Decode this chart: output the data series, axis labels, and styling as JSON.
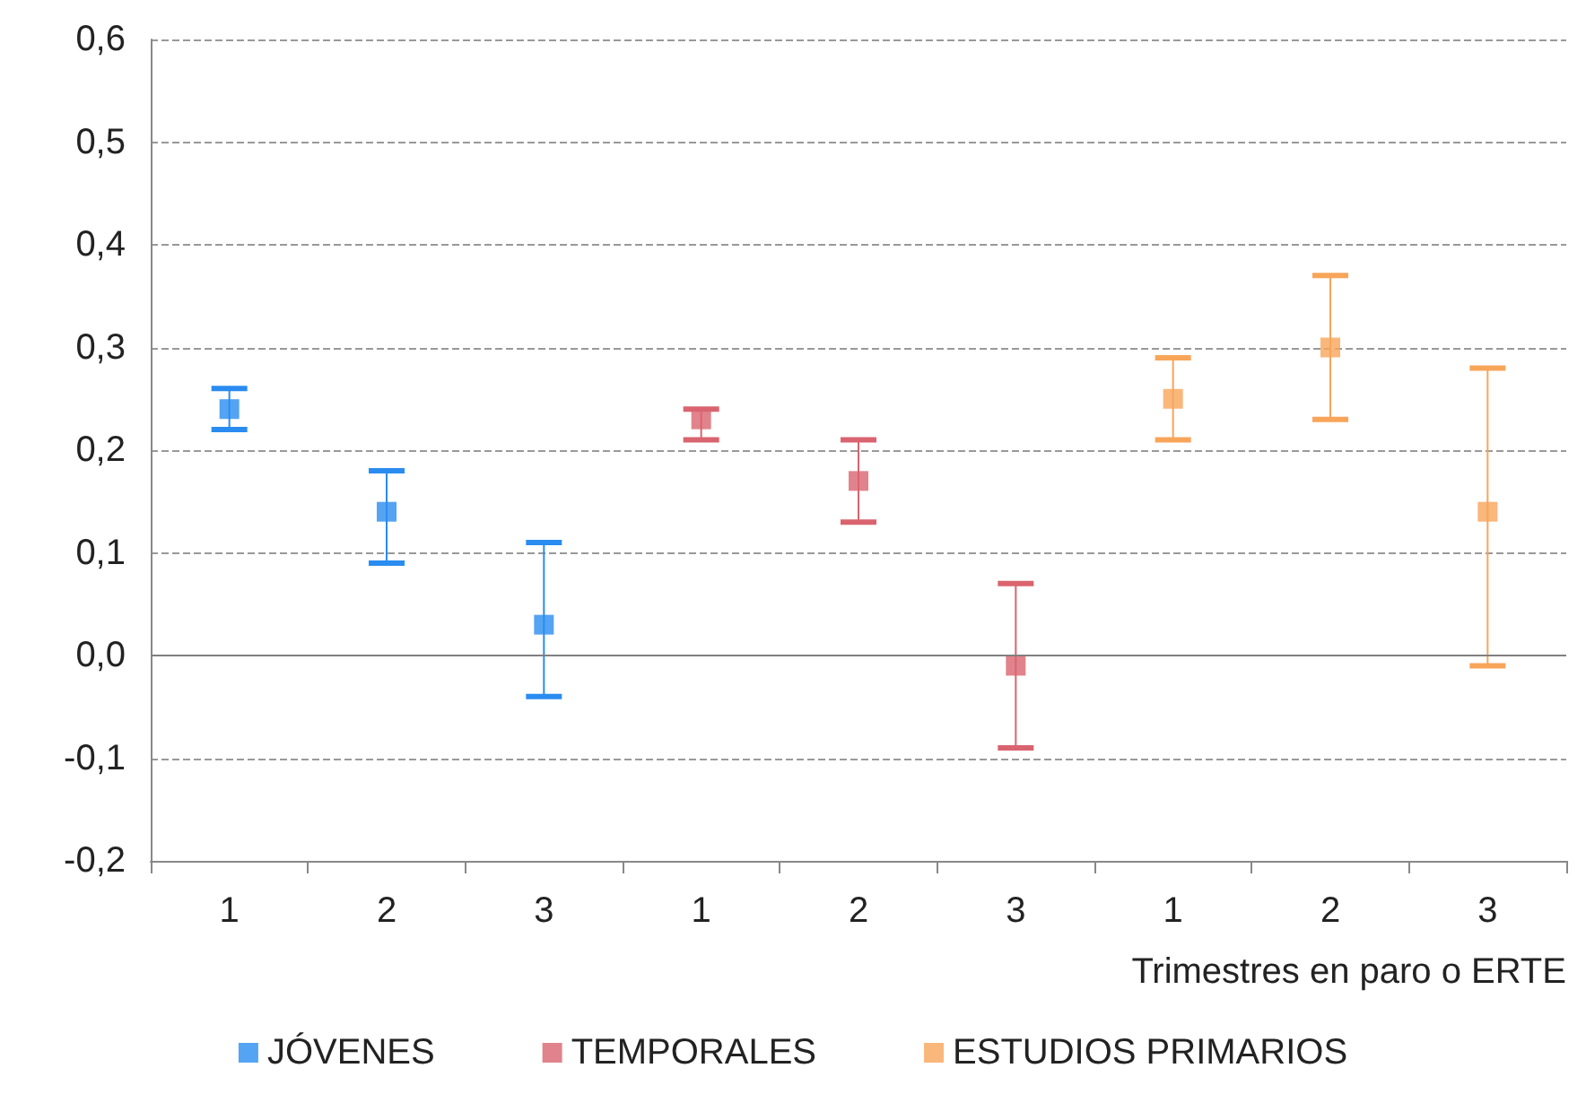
{
  "chart_data": {
    "type": "scatter",
    "xlabel": "Trimestres en paro o ERTE",
    "categories": [
      "1",
      "2",
      "3",
      "1",
      "2",
      "3",
      "1",
      "2",
      "3"
    ],
    "series": [
      {
        "name": "JÓVENES",
        "color": "#2a8cf0",
        "values": [
          0.24,
          0.14,
          0.03,
          null,
          null,
          null,
          null,
          null,
          null
        ],
        "errors": [
          [
            0.22,
            0.26
          ],
          [
            0.09,
            0.18
          ],
          [
            -0.04,
            0.11
          ],
          null,
          null,
          null,
          null,
          null,
          null
        ]
      },
      {
        "name": "TEMPORALES",
        "color": "#d9646f",
        "values": [
          null,
          null,
          null,
          0.23,
          0.17,
          -0.01,
          null,
          null,
          null
        ],
        "errors": [
          null,
          null,
          null,
          [
            0.21,
            0.24
          ],
          [
            0.13,
            0.21
          ],
          [
            -0.09,
            0.07
          ],
          null,
          null,
          null
        ]
      },
      {
        "name": "ESTUDIOS PRIMARIOS",
        "color": "#f8a55a",
        "values": [
          null,
          null,
          null,
          null,
          null,
          null,
          0.25,
          0.3,
          0.14
        ],
        "errors": [
          null,
          null,
          null,
          null,
          null,
          null,
          [
            0.21,
            0.29
          ],
          [
            0.23,
            0.37
          ],
          [
            -0.01,
            0.28
          ]
        ]
      }
    ],
    "ylim": [
      -0.2,
      0.6
    ],
    "yticks": [
      {
        "value": -0.2,
        "label": "-0,2"
      },
      {
        "value": -0.1,
        "label": "-0,1"
      },
      {
        "value": 0,
        "label": "0,0"
      },
      {
        "value": 0.1,
        "label": "0,1"
      },
      {
        "value": 0.2,
        "label": "0,2"
      },
      {
        "value": 0.3,
        "label": "0,3"
      },
      {
        "value": 0.4,
        "label": "0,4"
      },
      {
        "value": 0.5,
        "label": "0,5"
      },
      {
        "value": 0.6,
        "label": "0,6"
      }
    ],
    "ref_lines": [
      {
        "axis": "y",
        "value": 0,
        "color": "#808080"
      }
    ],
    "grid": "y",
    "legend": "bottom",
    "marker": "square"
  }
}
